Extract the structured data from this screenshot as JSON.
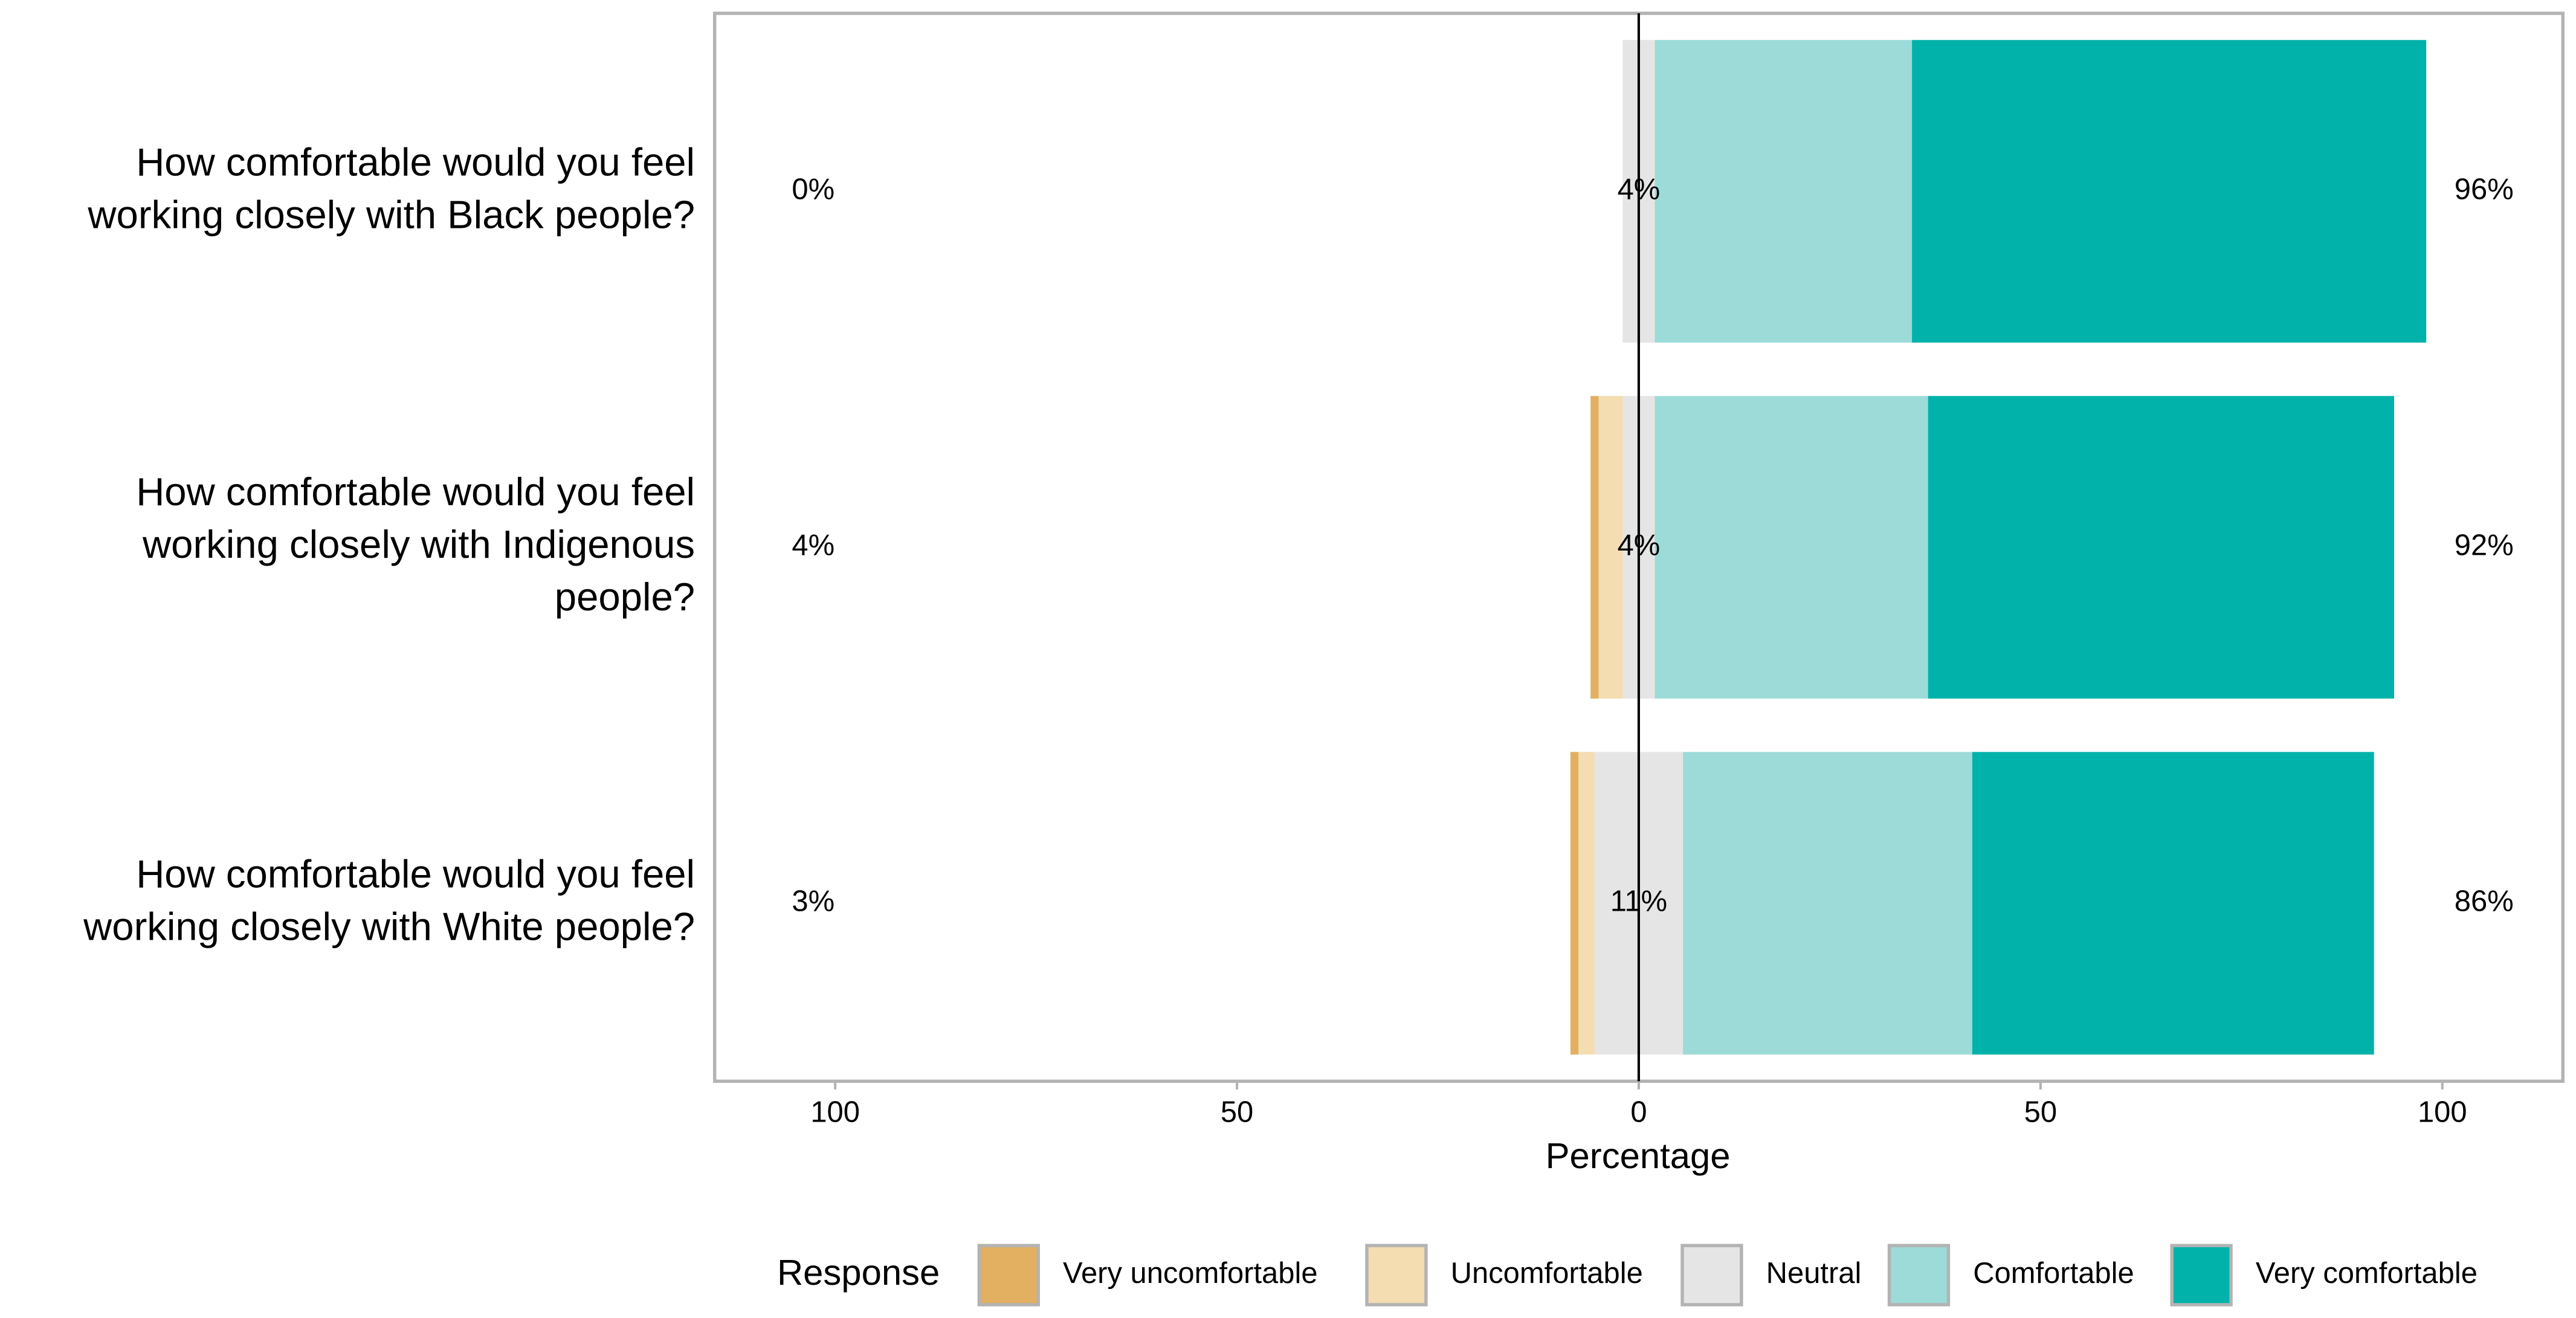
{
  "chart_data": {
    "type": "diverging_bar",
    "x_label": "Percentage",
    "legend_title": "Response",
    "categories": [
      [
        "How comfortable would you feel",
        "working closely with Black people?"
      ],
      [
        "How comfortable would you feel",
        "working closely with Indigenous",
        "people?"
      ],
      [
        "How comfortable would you feel",
        "working closely with White people?"
      ]
    ],
    "series": [
      {
        "name": "Very uncomfortable",
        "color": "#e2b060",
        "values": [
          0,
          1,
          1
        ]
      },
      {
        "name": "Uncomfortable",
        "color": "#f3ddb1",
        "values": [
          0,
          3,
          2
        ]
      },
      {
        "name": "Neutral",
        "color": "#e5e5e5",
        "values": [
          4,
          4,
          11
        ],
        "value_labels": [
          "4%",
          "4%",
          "11%"
        ]
      },
      {
        "name": "Comfortable",
        "color": "#9cdbd8",
        "values": [
          32,
          34,
          36
        ]
      },
      {
        "name": "Very comfortable",
        "color": "#00b2a9",
        "values": [
          64,
          58,
          50
        ]
      }
    ],
    "low_totals": {
      "values": [
        0,
        4,
        3
      ],
      "value_labels": [
        "0%",
        "4%",
        "3%"
      ]
    },
    "high_totals": {
      "values": [
        96,
        92,
        86
      ],
      "value_labels": [
        "96%",
        "92%",
        "86%"
      ]
    },
    "xlim": [
      -115,
      115
    ],
    "xticks": [
      {
        "value": -100,
        "label": "100"
      },
      {
        "value": -50,
        "label": "50"
      },
      0,
      50,
      100
    ]
  }
}
